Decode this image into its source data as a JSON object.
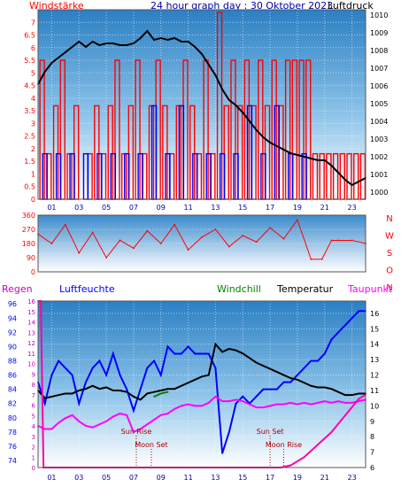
{
  "chart_data": [
    {
      "type": "line",
      "title": "24 hour graph day : 30 Oktober 2023",
      "left_label": "Windstärke",
      "right_label": "Luftdruck",
      "x_ticks": [
        "01",
        "03",
        "05",
        "07",
        "09",
        "11",
        "13",
        "15",
        "17",
        "19",
        "21",
        "23"
      ],
      "left_ticks": [
        "0",
        "0.5",
        "1",
        "1.5",
        "2",
        "2.5",
        "3",
        "3.5",
        "4",
        "4.5",
        "5",
        "5.5",
        "6",
        "6.5",
        "7"
      ],
      "right_ticks": [
        "1000",
        "1001",
        "1002",
        "1003",
        "1004",
        "1005",
        "1006",
        "1007",
        "1008",
        "1009",
        "1010"
      ],
      "xlim": [
        0,
        24
      ],
      "ylim_left": [
        0,
        7.5
      ],
      "ylim_right": [
        999.6,
        1010.3
      ],
      "series": [
        {
          "role": "pressure",
          "color": "#000000",
          "axis": "right",
          "x": [
            0,
            0.5,
            1,
            1.5,
            2,
            2.5,
            3,
            3.5,
            4,
            4.5,
            5,
            5.5,
            6,
            6.5,
            7,
            7.5,
            8,
            8.5,
            9,
            9.5,
            10,
            10.5,
            11,
            11.5,
            12,
            12.5,
            13,
            13.5,
            14,
            14.5,
            15,
            15.5,
            16,
            16.5,
            17,
            17.5,
            18,
            18.5,
            19,
            19.5,
            20,
            20.5,
            21,
            21.5,
            22,
            22.5,
            23,
            23.5,
            24
          ],
          "y": [
            1006.1,
            1006.8,
            1007.3,
            1007.6,
            1007.9,
            1008.2,
            1008.5,
            1008.2,
            1008.5,
            1008.3,
            1008.4,
            1008.4,
            1008.3,
            1008.3,
            1008.4,
            1008.7,
            1009.1,
            1008.6,
            1008.7,
            1008.6,
            1008.7,
            1008.5,
            1008.5,
            1008.2,
            1007.8,
            1007.2,
            1006.6,
            1005.8,
            1005.2,
            1004.9,
            1004.5,
            1004.0,
            1003.5,
            1003.1,
            1002.8,
            1002.6,
            1002.4,
            1002.2,
            1002.1,
            1002.0,
            1001.9,
            1001.8,
            1001.8,
            1001.5,
            1001.1,
            1000.7,
            1000.4,
            1000.6,
            1000.8
          ]
        },
        {
          "role": "wind-gust",
          "color": "#ff0000",
          "axis": "left",
          "style": "bars",
          "x": [
            0.3,
            0.8,
            1.3,
            1.8,
            2.3,
            2.8,
            3.3,
            3.8,
            4.3,
            4.8,
            5.3,
            5.8,
            6.3,
            6.8,
            7.3,
            7.8,
            8.3,
            8.8,
            9.3,
            9.8,
            10.3,
            10.8,
            11.3,
            11.8,
            12.3,
            12.8,
            13.3,
            13.8,
            14.3,
            14.8,
            15.3,
            15.8,
            16.3,
            16.8,
            17.3,
            17.8,
            18.3,
            18.8,
            19.3,
            19.8,
            20.3,
            20.8,
            21.3,
            21.8,
            22.3,
            22.8,
            23.3,
            23.8
          ],
          "y": [
            5.5,
            1.8,
            3.7,
            5.5,
            1.8,
            3.7,
            0,
            1.8,
            3.7,
            1.8,
            3.7,
            5.5,
            1.8,
            3.7,
            5.5,
            1.8,
            3.7,
            5.5,
            3.7,
            1.8,
            3.7,
            5.5,
            3.7,
            1.8,
            5.5,
            1.8,
            7.4,
            3.7,
            5.5,
            3.7,
            5.5,
            3.7,
            5.5,
            3.7,
            5.5,
            3.7,
            5.5,
            5.5,
            5.5,
            5.5,
            1.8,
            1.8,
            1.8,
            1.8,
            1.8,
            1.8,
            1.8,
            1.8
          ]
        },
        {
          "role": "wind-avg",
          "color": "#0000ff",
          "axis": "left",
          "style": "bars",
          "x": [
            0.5,
            1.5,
            2.5,
            3.5,
            4.5,
            5.5,
            6.5,
            7.5,
            8.5,
            9.5,
            10.5,
            11.5,
            12.5,
            13.5,
            14.5,
            15.5,
            16.5,
            17.5,
            18.5,
            19.5,
            20.5,
            21.5,
            22.5,
            23.5
          ],
          "y": [
            1.8,
            1.8,
            1.8,
            1.8,
            1.8,
            1.8,
            1.8,
            1.8,
            3.7,
            1.8,
            3.7,
            1.8,
            1.8,
            1.8,
            1.8,
            3.7,
            1.8,
            3.7,
            1.8,
            1.8,
            0,
            0,
            0,
            0
          ]
        }
      ]
    },
    {
      "type": "scatter",
      "left_ticks": [
        "0",
        "90",
        "180",
        "270",
        "360"
      ],
      "right_ticks": [
        "N",
        "W",
        "S",
        "O",
        "N"
      ],
      "xlim": [
        0,
        24
      ],
      "ylim": [
        0,
        360
      ],
      "series": [
        {
          "role": "wind-direction",
          "color": "#ff0000",
          "x": [
            0,
            1,
            2,
            3,
            4,
            5,
            6,
            7,
            8,
            9,
            10,
            11,
            12,
            13,
            14,
            15,
            16,
            17,
            18,
            19,
            20,
            20.8,
            21.5,
            22,
            23,
            24
          ],
          "y": [
            240,
            180,
            300,
            120,
            250,
            90,
            200,
            150,
            260,
            180,
            300,
            140,
            220,
            270,
            160,
            230,
            190,
            280,
            210,
            330,
            80,
            80,
            200,
            200,
            200,
            180
          ]
        }
      ]
    },
    {
      "type": "line",
      "labels": {
        "rain": "Regen",
        "humidity": "Luftfeuchte",
        "windchill": "Windchill",
        "temperature": "Temperatur",
        "dewpoint": "Taupunkt"
      },
      "x_ticks": [
        "01",
        "03",
        "05",
        "07",
        "09",
        "11",
        "13",
        "15",
        "17",
        "19",
        "21",
        "23"
      ],
      "humidity_ticks": [
        "74",
        "76",
        "78",
        "80",
        "82",
        "84",
        "86",
        "88",
        "90",
        "92",
        "94",
        "96"
      ],
      "rain_ticks": [
        "0",
        "1",
        "2",
        "3",
        "4",
        "5",
        "6",
        "7",
        "8",
        "9",
        "10",
        "11",
        "12",
        "13",
        "14",
        "15",
        "16"
      ],
      "temp_ticks": [
        "6",
        "7",
        "8",
        "9",
        "10",
        "11",
        "12",
        "13",
        "14",
        "15",
        "16"
      ],
      "annotations": {
        "sunrise": {
          "label": "Sun Rise",
          "x": 7.2
        },
        "moonset": {
          "label": "Moon Set",
          "x": 8.3
        },
        "sunset": {
          "label": "Sun Set",
          "x": 17.0
        },
        "moonrise": {
          "label": "Moon Rise",
          "x": 18.0
        }
      },
      "xlim": [
        0,
        24
      ],
      "ylim_humidity": [
        73,
        96.4
      ],
      "ylim_temp": [
        6,
        16.8
      ],
      "ylim_rain": [
        0,
        16
      ],
      "series": [
        {
          "role": "humidity",
          "color": "#0000ff",
          "axis": "humidity",
          "x": [
            0,
            0.5,
            1,
            1.5,
            2,
            2.5,
            3,
            3.5,
            4,
            4.5,
            5,
            5.5,
            6,
            6.5,
            7,
            7.5,
            8,
            8.5,
            9,
            9.5,
            10,
            10.5,
            11,
            11.5,
            12,
            12.5,
            13,
            13.5,
            14,
            14.5,
            15,
            15.5,
            16,
            16.5,
            17,
            17.5,
            18,
            18.5,
            19,
            19.5,
            20,
            20.5,
            21,
            21.5,
            22,
            22.5,
            23,
            23.5,
            24
          ],
          "y": [
            85,
            82,
            86,
            88,
            87,
            86,
            82,
            85,
            87,
            88,
            86,
            89,
            86,
            84,
            81,
            84,
            87,
            88,
            86,
            90,
            89,
            89,
            90,
            89,
            89,
            89,
            87,
            75,
            78,
            82,
            83,
            82,
            83,
            84,
            84,
            84,
            85,
            85,
            86,
            87,
            88,
            88,
            89,
            91,
            92,
            93,
            94,
            95,
            95
          ]
        },
        {
          "role": "temperature",
          "color": "#000000",
          "axis": "temp",
          "x": [
            0,
            0.5,
            1,
            1.5,
            2,
            2.5,
            3,
            3.5,
            4,
            4.5,
            5,
            5.5,
            6,
            6.5,
            7,
            7.5,
            8,
            8.5,
            9,
            9.5,
            10,
            10.5,
            11,
            11.5,
            12,
            12.5,
            13,
            13.5,
            14,
            14.5,
            15,
            15.5,
            16,
            16.5,
            17,
            17.5,
            18,
            18.5,
            19,
            19.5,
            20,
            20.5,
            21,
            21.5,
            22,
            22.5,
            23,
            23.5,
            24
          ],
          "y": [
            11.0,
            10.5,
            10.6,
            10.7,
            10.8,
            10.8,
            11.0,
            11.1,
            11.3,
            11.1,
            11.2,
            11.0,
            11.0,
            10.9,
            10.6,
            10.4,
            10.8,
            10.9,
            11.0,
            11.1,
            11.1,
            11.3,
            11.5,
            11.7,
            11.9,
            12.0,
            14.0,
            13.5,
            13.7,
            13.6,
            13.4,
            13.1,
            12.8,
            12.6,
            12.4,
            12.2,
            12.0,
            11.8,
            11.7,
            11.5,
            11.3,
            11.2,
            11.2,
            11.1,
            10.9,
            10.7,
            10.7,
            10.8,
            10.8
          ]
        },
        {
          "role": "windchill",
          "color": "#008000",
          "axis": "temp",
          "x": [
            8.5,
            9,
            9.5
          ],
          "y": [
            10.6,
            10.8,
            10.9
          ]
        },
        {
          "role": "dewpoint",
          "color": "#ff00ff",
          "axis": "temp",
          "x": [
            0,
            0.5,
            1,
            1.5,
            2,
            2.5,
            3,
            3.5,
            4,
            4.5,
            5,
            5.5,
            6,
            6.5,
            7,
            7.5,
            8,
            8.5,
            9,
            9.5,
            10,
            10.5,
            11,
            11.5,
            12,
            12.5,
            13,
            13.5,
            14,
            14.5,
            15,
            15.5,
            16,
            16.5,
            17,
            17.5,
            18,
            18.5,
            19,
            19.5,
            20,
            20.5,
            21,
            21.5,
            22,
            22.5,
            23,
            23.5,
            24
          ],
          "y": [
            8.7,
            8.5,
            8.5,
            8.9,
            9.2,
            9.4,
            9.0,
            8.7,
            8.6,
            8.8,
            9.0,
            9.3,
            9.5,
            9.4,
            8.3,
            8.5,
            8.8,
            9.1,
            9.4,
            9.5,
            9.8,
            10.0,
            10.1,
            10.0,
            10.0,
            10.2,
            10.6,
            10.3,
            10.3,
            10.4,
            10.3,
            10.1,
            9.9,
            9.9,
            10.0,
            10.1,
            10.1,
            10.2,
            10.1,
            10.2,
            10.1,
            10.2,
            10.3,
            10.2,
            10.3,
            10.2,
            10.2,
            10.3,
            10.4
          ]
        },
        {
          "role": "rain",
          "color": "#ff00aa",
          "axis": "rain",
          "x": [
            0,
            0.2,
            0.4,
            17.8,
            18.5,
            19,
            19.5,
            20,
            20.5,
            21,
            21.5,
            22,
            22.5,
            23,
            23.5,
            24
          ],
          "y": [
            16,
            16,
            0,
            0,
            0.2,
            0.6,
            1.0,
            1.6,
            2.2,
            2.8,
            3.4,
            4.2,
            5.0,
            5.8,
            6.6,
            7.0
          ]
        }
      ]
    }
  ]
}
